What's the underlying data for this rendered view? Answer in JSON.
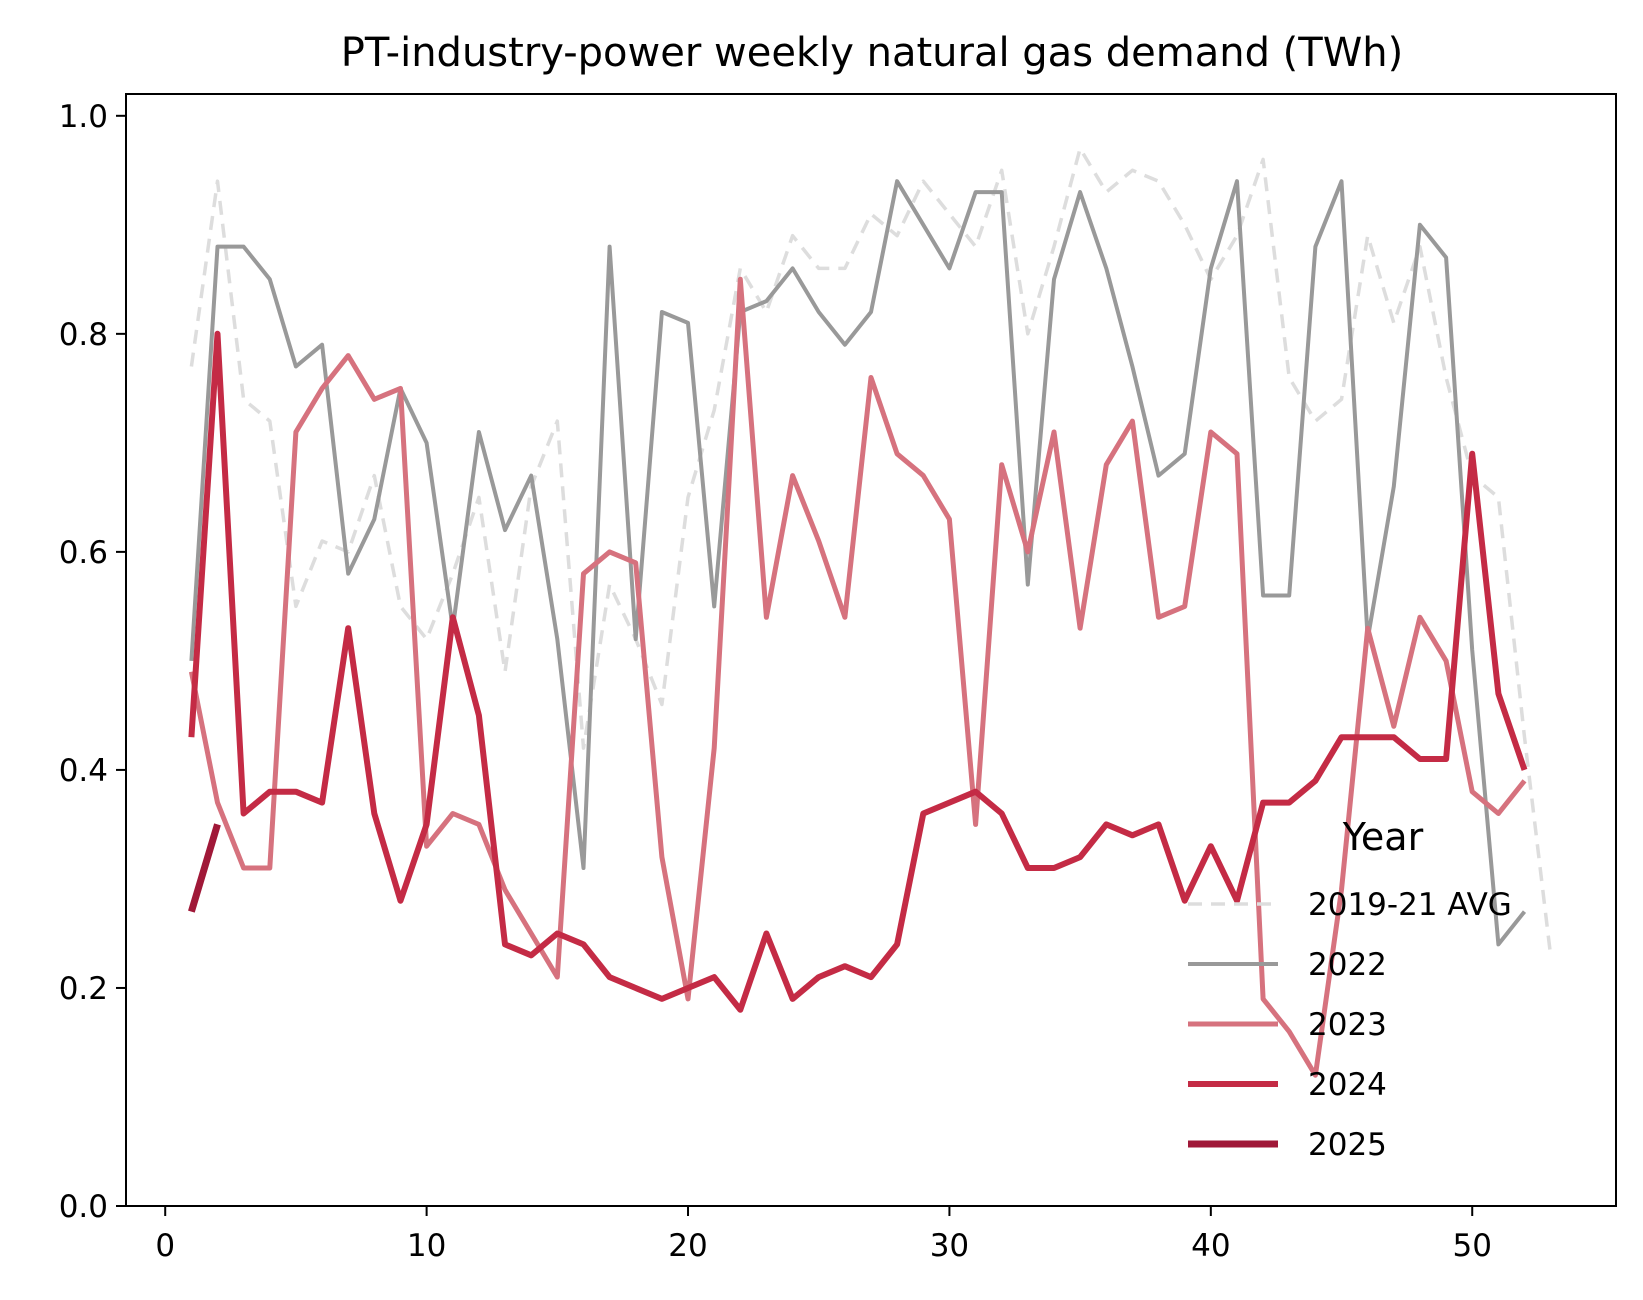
{
  "chart_data": {
    "type": "line",
    "title": "PT-industry-power weekly natural gas demand (TWh)",
    "xlabel": "",
    "ylabel": "",
    "xlim": [
      -1.5,
      55.5
    ],
    "ylim": [
      0,
      1.02
    ],
    "xticks": [
      0,
      10,
      20,
      30,
      40,
      50
    ],
    "yticks": [
      0.0,
      0.2,
      0.4,
      0.6,
      0.8,
      1.0
    ],
    "ytick_labels": [
      "0.0",
      "0.2",
      "0.4",
      "0.6",
      "0.8",
      "1.0"
    ],
    "grid": false,
    "legend": {
      "title": "Year",
      "placement": "lower-right"
    },
    "series": [
      {
        "name": "2019-21 AVG",
        "color": "#dddddd",
        "style": "dashed",
        "x": [
          1,
          2,
          3,
          4,
          5,
          6,
          7,
          8,
          9,
          10,
          11,
          12,
          13,
          14,
          15,
          16,
          17,
          18,
          19,
          20,
          21,
          22,
          23,
          24,
          25,
          26,
          27,
          28,
          29,
          30,
          31,
          32,
          33,
          34,
          35,
          36,
          37,
          38,
          39,
          40,
          41,
          42,
          43,
          44,
          45,
          46,
          47,
          48,
          49,
          50,
          51,
          52,
          53
        ],
        "values": [
          0.77,
          0.94,
          0.74,
          0.72,
          0.55,
          0.61,
          0.6,
          0.67,
          0.55,
          0.52,
          0.58,
          0.65,
          0.49,
          0.66,
          0.72,
          0.42,
          0.57,
          0.52,
          0.46,
          0.65,
          0.73,
          0.86,
          0.82,
          0.89,
          0.86,
          0.86,
          0.91,
          0.89,
          0.94,
          0.91,
          0.88,
          0.95,
          0.8,
          0.88,
          0.97,
          0.93,
          0.95,
          0.94,
          0.9,
          0.85,
          0.89,
          0.96,
          0.76,
          0.72,
          0.74,
          0.89,
          0.81,
          0.88,
          0.76,
          0.67,
          0.65,
          0.43,
          0.23
        ]
      },
      {
        "name": "2022",
        "color": "#999999",
        "style": "solid",
        "x": [
          1,
          2,
          3,
          4,
          5,
          6,
          7,
          8,
          9,
          10,
          11,
          12,
          13,
          14,
          15,
          16,
          17,
          18,
          19,
          20,
          21,
          22,
          23,
          24,
          25,
          26,
          27,
          28,
          29,
          30,
          31,
          32,
          33,
          34,
          35,
          36,
          37,
          38,
          39,
          40,
          41,
          42,
          43,
          44,
          45,
          46,
          47,
          48,
          49,
          50,
          51,
          52
        ],
        "values": [
          0.5,
          0.88,
          0.88,
          0.85,
          0.77,
          0.79,
          0.58,
          0.63,
          0.75,
          0.7,
          0.53,
          0.71,
          0.62,
          0.67,
          0.52,
          0.31,
          0.88,
          0.52,
          0.82,
          0.81,
          0.55,
          0.82,
          0.83,
          0.86,
          0.82,
          0.79,
          0.82,
          0.94,
          0.9,
          0.86,
          0.93,
          0.93,
          0.57,
          0.85,
          0.93,
          0.86,
          0.77,
          0.67,
          0.69,
          0.86,
          0.94,
          0.56,
          0.56,
          0.88,
          0.94,
          0.52,
          0.66,
          0.9,
          0.87,
          0.51,
          0.24,
          0.27
        ]
      },
      {
        "name": "2023",
        "color": "#d6727e",
        "style": "solid",
        "x": [
          1,
          2,
          3,
          4,
          5,
          6,
          7,
          8,
          9,
          10,
          11,
          12,
          13,
          14,
          15,
          16,
          17,
          18,
          19,
          20,
          21,
          22,
          23,
          24,
          25,
          26,
          27,
          28,
          29,
          30,
          31,
          32,
          33,
          34,
          35,
          36,
          37,
          38,
          39,
          40,
          41,
          42,
          43,
          44,
          45,
          46,
          47,
          48,
          49,
          50,
          51,
          52
        ],
        "values": [
          0.49,
          0.37,
          0.31,
          0.31,
          0.71,
          0.75,
          0.78,
          0.74,
          0.75,
          0.33,
          0.36,
          0.35,
          0.29,
          0.25,
          0.21,
          0.58,
          0.6,
          0.59,
          0.32,
          0.19,
          0.42,
          0.85,
          0.54,
          0.67,
          0.61,
          0.54,
          0.76,
          0.69,
          0.67,
          0.63,
          0.35,
          0.68,
          0.6,
          0.71,
          0.53,
          0.68,
          0.72,
          0.54,
          0.55,
          0.71,
          0.69,
          0.19,
          0.16,
          0.12,
          0.29,
          0.53,
          0.44,
          0.54,
          0.5,
          0.38,
          0.36,
          0.39
        ]
      },
      {
        "name": "2024",
        "color": "#c42b45",
        "style": "solid",
        "x": [
          1,
          2,
          3,
          4,
          5,
          6,
          7,
          8,
          9,
          10,
          11,
          12,
          13,
          14,
          15,
          16,
          17,
          18,
          19,
          20,
          21,
          22,
          23,
          24,
          25,
          26,
          27,
          28,
          29,
          30,
          31,
          32,
          33,
          34,
          35,
          36,
          37,
          38,
          39,
          40,
          41,
          42,
          43,
          44,
          45,
          46,
          47,
          48,
          49,
          50,
          51,
          52
        ],
        "values": [
          0.43,
          0.8,
          0.36,
          0.38,
          0.38,
          0.37,
          0.53,
          0.36,
          0.28,
          0.35,
          0.54,
          0.45,
          0.24,
          0.23,
          0.25,
          0.24,
          0.21,
          0.2,
          0.19,
          0.2,
          0.21,
          0.18,
          0.25,
          0.19,
          0.21,
          0.22,
          0.21,
          0.24,
          0.36,
          0.37,
          0.38,
          0.36,
          0.31,
          0.31,
          0.32,
          0.35,
          0.34,
          0.35,
          0.28,
          0.33,
          0.28,
          0.37,
          0.37,
          0.39,
          0.43,
          0.43,
          0.43,
          0.41,
          0.41,
          0.69,
          0.47,
          0.4
        ]
      },
      {
        "name": "2025",
        "color": "#a01838",
        "style": "solid",
        "x": [
          1,
          2
        ],
        "values": [
          0.27,
          0.35
        ]
      }
    ]
  }
}
